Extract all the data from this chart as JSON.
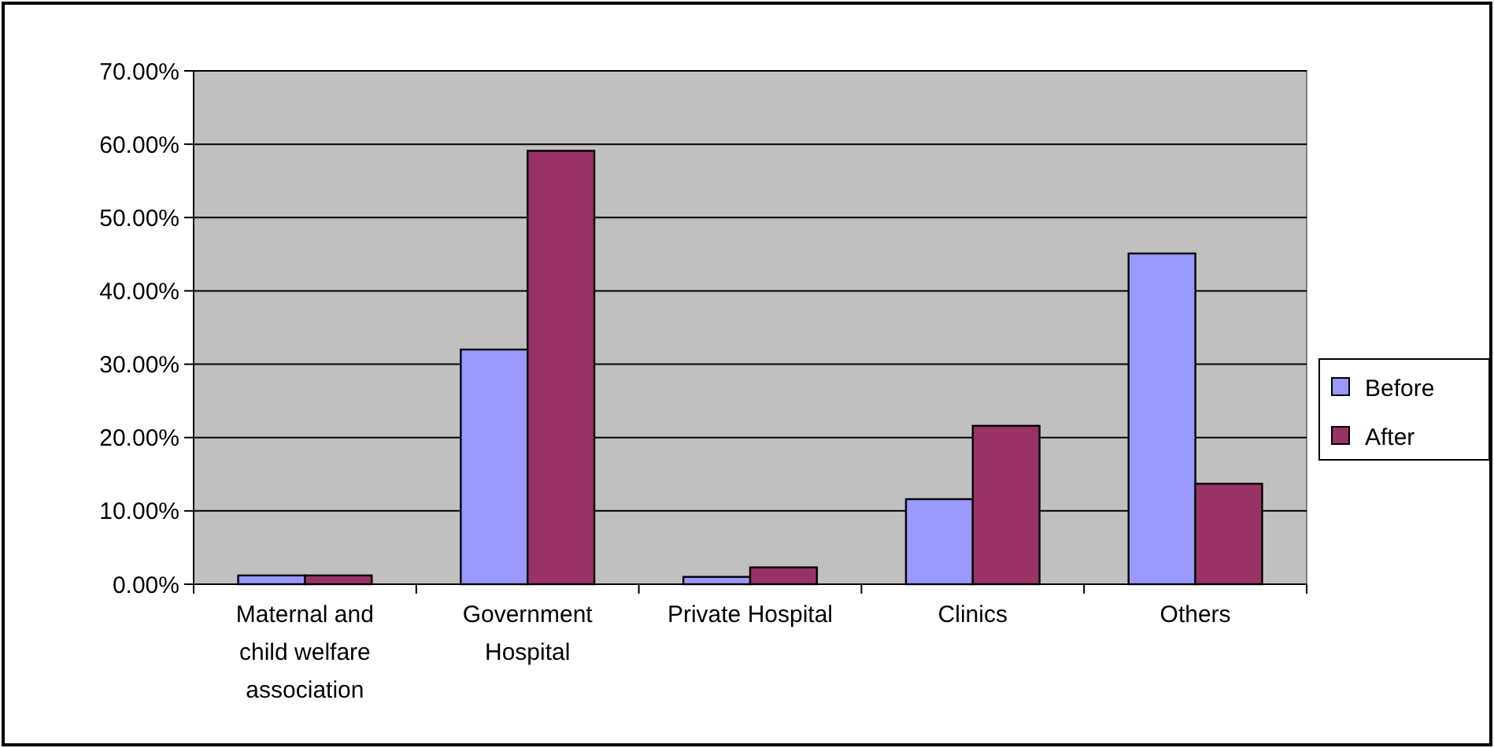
{
  "chart_data": {
    "type": "bar",
    "categories": [
      "Maternal and child welfare association",
      "Government Hospital",
      "Private Hospital",
      "Clinics",
      "Others"
    ],
    "series": [
      {
        "name": "Before",
        "color": "#9999ff",
        "values": [
          1.2,
          32.0,
          1.0,
          11.6,
          45.1
        ]
      },
      {
        "name": "After",
        "color": "#993366",
        "values": [
          1.2,
          59.1,
          2.3,
          21.6,
          13.7
        ]
      }
    ],
    "ylim": [
      0,
      70
    ],
    "yticks": [
      {
        "value": 0,
        "label": "0.00%"
      },
      {
        "value": 10,
        "label": "10.00%"
      },
      {
        "value": 20,
        "label": "20.00%"
      },
      {
        "value": 30,
        "label": "30.00%"
      },
      {
        "value": 40,
        "label": "40.00%"
      },
      {
        "value": 50,
        "label": "50.00%"
      },
      {
        "value": 60,
        "label": "60.00%"
      },
      {
        "value": 70,
        "label": "70.00%"
      }
    ],
    "grid": "y",
    "legend": "right"
  }
}
